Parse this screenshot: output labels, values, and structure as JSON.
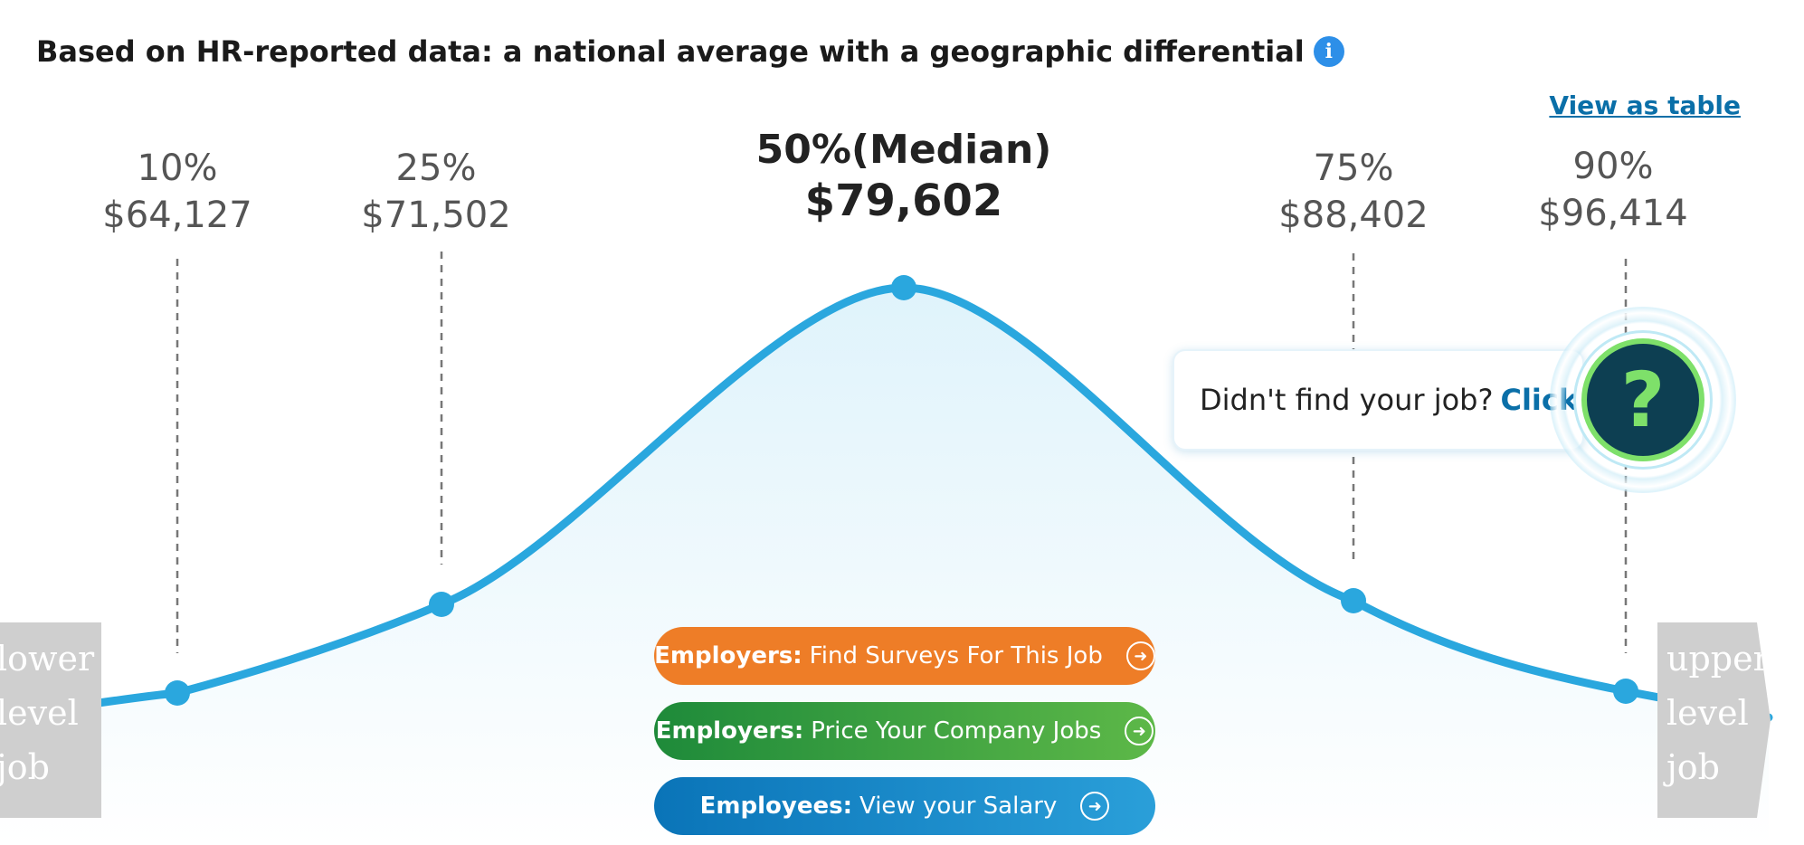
{
  "header": {
    "title": "Based on HR-reported data: a national average with a geographic differential",
    "info_icon": "i",
    "view_table": "View as table"
  },
  "chart_data": {
    "type": "area",
    "series": [
      {
        "values": [
          64127,
          71502,
          79602,
          88402,
          96414
        ]
      }
    ],
    "percentiles": [
      {
        "pct": "10%",
        "value": "$64,127",
        "num": 64127
      },
      {
        "pct": "25%",
        "value": "$71,502",
        "num": 71502
      },
      {
        "pct": "50%(Median)",
        "value": "$79,602",
        "num": 79602
      },
      {
        "pct": "75%",
        "value": "$88,402",
        "num": 88402
      },
      {
        "pct": "90%",
        "value": "$96,414",
        "num": 96414
      }
    ],
    "colors": {
      "line": "#2aa7de",
      "fill_top": "#dff3fb",
      "fill_bottom": "#ffffff",
      "guides": "#777777"
    }
  },
  "side_labels": {
    "lower": [
      "lower",
      "level",
      "job"
    ],
    "upper": [
      "upper",
      "level",
      "job"
    ]
  },
  "popup": {
    "text": "Didn't find your job?",
    "link": "Click",
    "help_icon": "?"
  },
  "buttons": {
    "employers_surveys": {
      "bold": "Employers:",
      "text": "Find Surveys For This Job"
    },
    "employers_price": {
      "bold": "Employers:",
      "text": "Price Your Company Jobs"
    },
    "employees_salary": {
      "bold": "Employees:",
      "text": "View your Salary"
    }
  }
}
